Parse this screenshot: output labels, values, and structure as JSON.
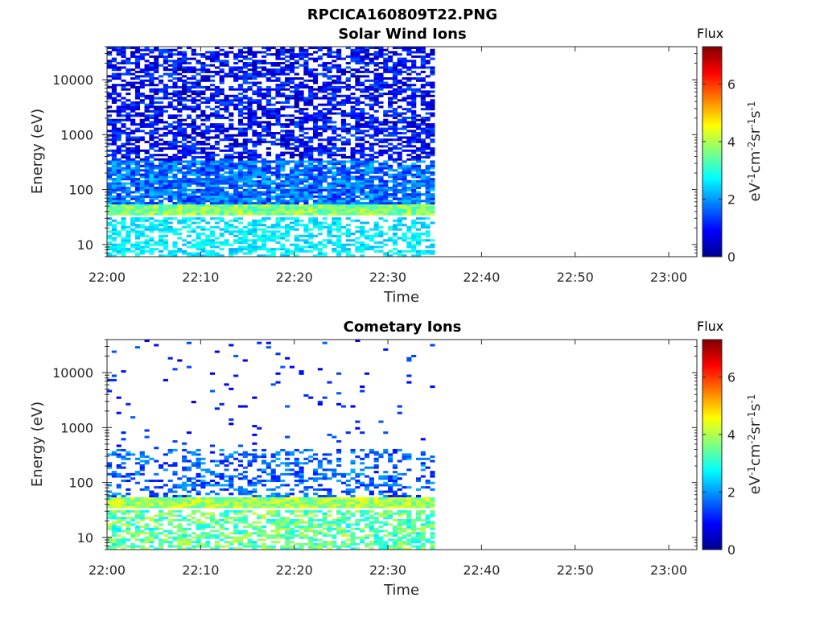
{
  "figure_title": "RPCICA160809T22.PNG",
  "chart_data": [
    {
      "type": "heatmap",
      "title": "Solar Wind Ions",
      "xlabel": "Time",
      "ylabel": "Energy (eV)",
      "x_ticks": [
        "22:00",
        "22:10",
        "22:20",
        "22:30",
        "22:40",
        "22:50",
        "23:00"
      ],
      "x_range": [
        "22:00",
        "23:03"
      ],
      "data_end_time": "22:35",
      "y_scale": "log",
      "y_ticks": [
        "10",
        "100",
        "1000",
        "10000"
      ],
      "y_range": [
        6,
        40000
      ],
      "colorbar": {
        "title": "Flux",
        "label": "eV-1cm-2sr-1s-1",
        "range": [
          0,
          7.3
        ],
        "ticks": [
          "0",
          "2",
          "4",
          "6"
        ],
        "colormap": "jet"
      },
      "bands": [
        {
          "energy_range": [
            6,
            32
          ],
          "level_range": [
            2.2,
            3.0
          ],
          "coverage": 0.55
        },
        {
          "energy_range": [
            33,
            55
          ],
          "level_range": [
            3.0,
            4.4
          ],
          "coverage": 1.0
        },
        {
          "energy_range": [
            55,
            350
          ],
          "level_range": [
            1.0,
            2.4
          ],
          "coverage": 0.85
        },
        {
          "energy_range": [
            350,
            40000
          ],
          "level_range": [
            0.2,
            1.6
          ],
          "coverage": 0.6
        }
      ]
    },
    {
      "type": "heatmap",
      "title": "Cometary Ions",
      "xlabel": "Time",
      "ylabel": "Energy (eV)",
      "x_ticks": [
        "22:00",
        "22:10",
        "22:20",
        "22:30",
        "22:40",
        "22:50",
        "23:00"
      ],
      "x_range": [
        "22:00",
        "23:03"
      ],
      "data_end_time": "22:35",
      "y_scale": "log",
      "y_ticks": [
        "10",
        "100",
        "1000",
        "10000"
      ],
      "y_range": [
        6,
        40000
      ],
      "colorbar": {
        "title": "Flux",
        "label": "eV-1cm-2sr-1s-1",
        "range": [
          0,
          7.3
        ],
        "ticks": [
          "0",
          "2",
          "4",
          "6"
        ],
        "colormap": "jet"
      },
      "bands": [
        {
          "energy_range": [
            6,
            32
          ],
          "level_range": [
            2.6,
            4.2
          ],
          "coverage": 0.6
        },
        {
          "energy_range": [
            33,
            55
          ],
          "level_range": [
            3.2,
            4.6
          ],
          "coverage": 1.0
        },
        {
          "energy_range": [
            55,
            400
          ],
          "level_range": [
            1.0,
            2.2
          ],
          "coverage": 0.35
        },
        {
          "energy_range": [
            400,
            40000
          ],
          "level_range": [
            0.6,
            1.6
          ],
          "coverage": 0.03
        }
      ]
    }
  ]
}
